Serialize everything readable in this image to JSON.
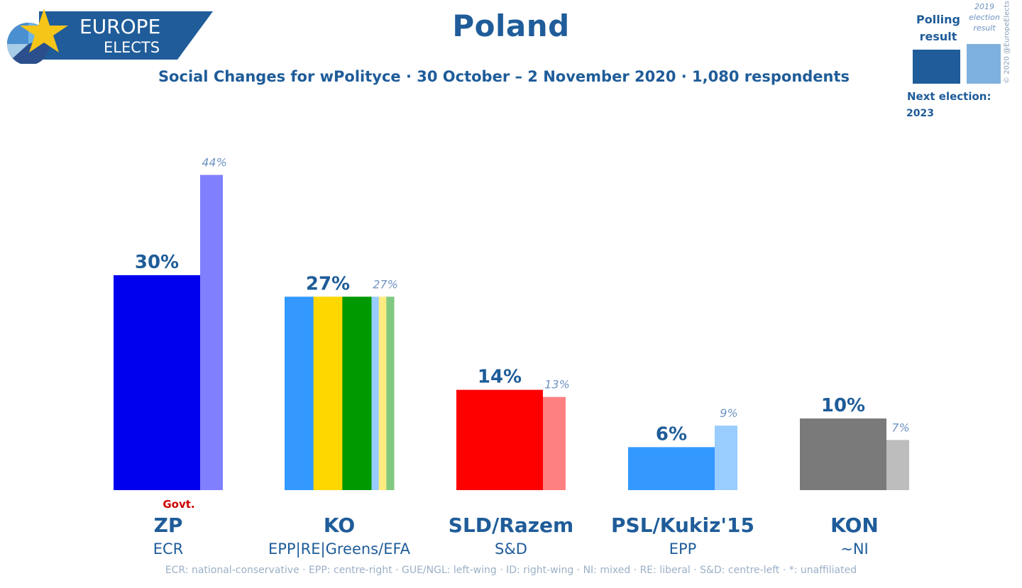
{
  "header": {
    "logo_line1": "EUROPE",
    "logo_line2": "ELECTS",
    "title": "Poland",
    "subtitle": "Social Changes for wPolityce · 30 October – 2 November 2020 · 1,080 respondents"
  },
  "legend": {
    "polling_label": "Polling result",
    "prev_label_year": "2019",
    "prev_label_line2": "election",
    "prev_label_line3": "result",
    "copyright": "© 2020 @EuropeElects",
    "next_election_label": "Next election:",
    "next_election_year": "2023"
  },
  "footer": {
    "glossary": "ECR: national-conservative · EPP: centre-right · GUE/NGL: left-wing · ID: right-wing · NI: mixed · RE: liberal · S&D: centre-left · *: unaffiliated"
  },
  "chart_data": {
    "type": "bar",
    "title": "Poland",
    "ylim": [
      0,
      50
    ],
    "series": [
      {
        "name": "Polling result",
        "values": [
          30,
          27,
          14,
          6,
          10
        ]
      },
      {
        "name": "2019 election result",
        "values": [
          44,
          27,
          13,
          9,
          7
        ]
      }
    ],
    "categories": [
      "ZP",
      "KO",
      "SLD/Razem",
      "PSL/Kukiz'15",
      "KON"
    ],
    "groups": [
      "ECR",
      "EPP|RE|Greens/EFA",
      "S&D",
      "EPP",
      "~NI"
    ],
    "poll_labels": [
      "30%",
      "27%",
      "14%",
      "6%",
      "10%"
    ],
    "prev_labels": [
      "44%",
      "27%",
      "13%",
      "9%",
      "7%"
    ],
    "annotations": [
      "Govt.",
      "",
      "",
      "",
      ""
    ],
    "colors": [
      {
        "poll": [
          "#0000ee"
        ],
        "prev": [
          "#8080ff"
        ]
      },
      {
        "poll": [
          "#3399ff",
          "#ffd700",
          "#009900"
        ],
        "prev": [
          "#99ccff",
          "#ffeb80",
          "#80c880"
        ]
      },
      {
        "poll": [
          "#ff0000"
        ],
        "prev": [
          "#ff8080"
        ]
      },
      {
        "poll": [
          "#3399ff"
        ],
        "prev": [
          "#99ccff"
        ]
      },
      {
        "poll": [
          "#7a7a7a"
        ],
        "prev": [
          "#bdbdbd"
        ]
      }
    ],
    "annotation_color": "#cc0000",
    "text_color": "#1f5c99",
    "prev_label_color": "#6f93c2"
  }
}
